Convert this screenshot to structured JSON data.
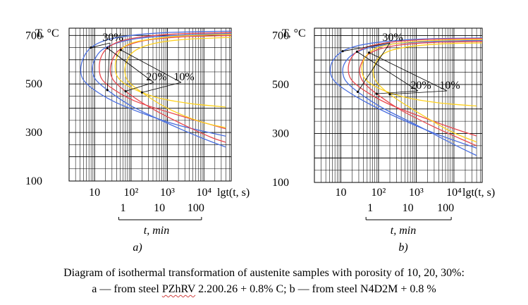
{
  "caption": {
    "line1": "Diagram of isothermal transformation of austenite samples with porosity of 10, 20, 30%:",
    "line2_pre": "a — from steel ",
    "line2_mark": "PZhRV",
    "line2_post": " 2.200.26 + 0.8% C; b — from steel N4D2M + 0.8 %"
  },
  "colors": {
    "p10": "#ffd21f",
    "p20": "#e8484f",
    "p30": "#4a6fe0",
    "p10_alt": "#ffd21f",
    "p20_alt": "#e8484f",
    "p30_alt": "#4a6fe0"
  },
  "chart_data": [
    {
      "type": "line",
      "panel_label": "a)",
      "ylabel": "T, °C",
      "xlabel": "lgt(t, s)",
      "ylim": [
        100,
        730
      ],
      "xlim": [
        0.3,
        4.75
      ],
      "y_ticks": [
        100,
        300,
        500,
        700
      ],
      "x_ticks": [
        {
          "value": 1,
          "label": "10"
        },
        {
          "value": 2,
          "label": "10²"
        },
        {
          "value": 3,
          "label": "10³"
        },
        {
          "value": 4,
          "label": "10⁴"
        }
      ],
      "minute_axis": {
        "labels": [
          "1",
          "10",
          "100"
        ],
        "values": [
          1.78,
          2.78,
          3.78
        ],
        "title": "t, min"
      },
      "annotations": [
        "30%",
        "20%",
        "10%"
      ],
      "series": [
        {
          "porosity": 30,
          "kind": "start",
          "color_key": "p30",
          "x": [
            4.75,
            3.0,
            2.0,
            1.3,
            0.9,
            0.7,
            0.62,
            0.68,
            0.95,
            1.5,
            2.3,
            3.3,
            4.6
          ],
          "y": [
            718,
            712,
            700,
            680,
            650,
            610,
            560,
            520,
            480,
            430,
            380,
            330,
            285
          ]
        },
        {
          "porosity": 30,
          "kind": "end",
          "color_key": "p30",
          "x": [
            4.75,
            3.2,
            2.2,
            1.6,
            1.2,
            1.0,
            0.94,
            1.02,
            1.35,
            2.0,
            2.9,
            3.9,
            4.6
          ],
          "y": [
            708,
            700,
            688,
            668,
            640,
            600,
            560,
            520,
            475,
            410,
            345,
            280,
            240
          ]
        },
        {
          "porosity": 20,
          "kind": "start",
          "color_key": "p20",
          "x": [
            4.75,
            3.2,
            2.3,
            1.7,
            1.35,
            1.18,
            1.13,
            1.2,
            1.5,
            2.1,
            3.0,
            3.9,
            4.6
          ],
          "y": [
            712,
            706,
            694,
            676,
            648,
            612,
            565,
            520,
            480,
            430,
            385,
            345,
            315
          ]
        },
        {
          "porosity": 20,
          "kind": "end",
          "color_key": "p20",
          "x": [
            4.75,
            3.4,
            2.5,
            1.95,
            1.63,
            1.48,
            1.43,
            1.52,
            1.85,
            2.5,
            3.4,
            4.2,
            4.6
          ],
          "y": [
            700,
            694,
            682,
            662,
            634,
            596,
            555,
            515,
            470,
            405,
            335,
            280,
            260
          ]
        },
        {
          "porosity": 10,
          "kind": "start",
          "color_key": "p10",
          "x": [
            4.75,
            3.4,
            2.6,
            2.0,
            1.72,
            1.6,
            1.57,
            1.65,
            2.0,
            2.7,
            3.6,
            4.6
          ],
          "y": [
            705,
            698,
            686,
            668,
            640,
            605,
            565,
            525,
            485,
            445,
            420,
            405
          ]
        },
        {
          "porosity": 10,
          "kind": "end",
          "color_key": "p10",
          "x": [
            4.75,
            3.6,
            2.8,
            2.3,
            2.0,
            1.87,
            1.83,
            1.92,
            2.3,
            3.0,
            3.9,
            4.6
          ],
          "y": [
            692,
            685,
            672,
            652,
            624,
            588,
            552,
            512,
            465,
            400,
            345,
            320
          ]
        }
      ]
    },
    {
      "type": "line",
      "panel_label": "b)",
      "ylabel": "T, °C",
      "xlabel": "lgt(t, s)",
      "ylim": [
        100,
        730
      ],
      "xlim": [
        0.3,
        4.75
      ],
      "y_ticks": [
        100,
        300,
        500,
        700
      ],
      "x_ticks": [
        {
          "value": 1,
          "label": "10"
        },
        {
          "value": 2,
          "label": "10²"
        },
        {
          "value": 3,
          "label": "10³"
        },
        {
          "value": 4,
          "label": "10⁴"
        }
      ],
      "minute_axis": {
        "labels": [
          "1",
          "10",
          "100"
        ],
        "values": [
          1.78,
          2.78,
          3.78
        ],
        "title": "t, min"
      },
      "annotations": [
        "30%",
        "20%",
        "10%"
      ],
      "series": [
        {
          "porosity": 30,
          "kind": "start",
          "color_key": "p30_alt",
          "x": [
            4.75,
            3.2,
            2.2,
            1.5,
            1.05,
            0.8,
            0.72,
            0.8,
            1.1,
            1.7,
            2.5,
            3.5,
            4.6
          ],
          "y": [
            690,
            686,
            676,
            660,
            636,
            600,
            560,
            520,
            480,
            425,
            365,
            300,
            240
          ]
        },
        {
          "porosity": 30,
          "kind": "end",
          "color_key": "p30_alt",
          "x": [
            4.75,
            3.4,
            2.4,
            1.75,
            1.35,
            1.12,
            1.05,
            1.13,
            1.45,
            2.1,
            3.0,
            4.0,
            4.6
          ],
          "y": [
            680,
            676,
            666,
            650,
            626,
            592,
            555,
            515,
            470,
            405,
            335,
            255,
            210
          ]
        },
        {
          "porosity": 20,
          "kind": "start",
          "color_key": "p20_alt",
          "x": [
            4.75,
            3.3,
            2.4,
            1.8,
            1.43,
            1.25,
            1.2,
            1.28,
            1.6,
            2.2,
            3.1,
            4.0,
            4.6
          ],
          "y": [
            688,
            684,
            674,
            658,
            634,
            600,
            560,
            520,
            478,
            425,
            370,
            320,
            290
          ]
        },
        {
          "porosity": 20,
          "kind": "end",
          "color_key": "p20_alt",
          "x": [
            4.75,
            3.5,
            2.6,
            2.05,
            1.72,
            1.55,
            1.5,
            1.6,
            1.95,
            2.6,
            3.5,
            4.3,
            4.6
          ],
          "y": [
            676,
            672,
            662,
            646,
            622,
            588,
            550,
            510,
            462,
            395,
            325,
            270,
            250
          ]
        },
        {
          "porosity": 10,
          "kind": "start",
          "color_key": "p10_alt",
          "x": [
            4.75,
            3.5,
            2.6,
            2.05,
            1.75,
            1.6,
            1.56,
            1.65,
            2.0,
            2.7,
            3.6,
            4.6
          ],
          "y": [
            684,
            680,
            670,
            654,
            630,
            597,
            560,
            522,
            485,
            448,
            425,
            412
          ]
        },
        {
          "porosity": 10,
          "kind": "end",
          "color_key": "p10_alt",
          "x": [
            4.75,
            3.7,
            2.9,
            2.35,
            2.05,
            1.9,
            1.86,
            1.95,
            2.3,
            3.0,
            3.9,
            4.6
          ],
          "y": [
            670,
            666,
            656,
            640,
            616,
            582,
            548,
            510,
            460,
            390,
            310,
            265
          ]
        }
      ]
    }
  ]
}
